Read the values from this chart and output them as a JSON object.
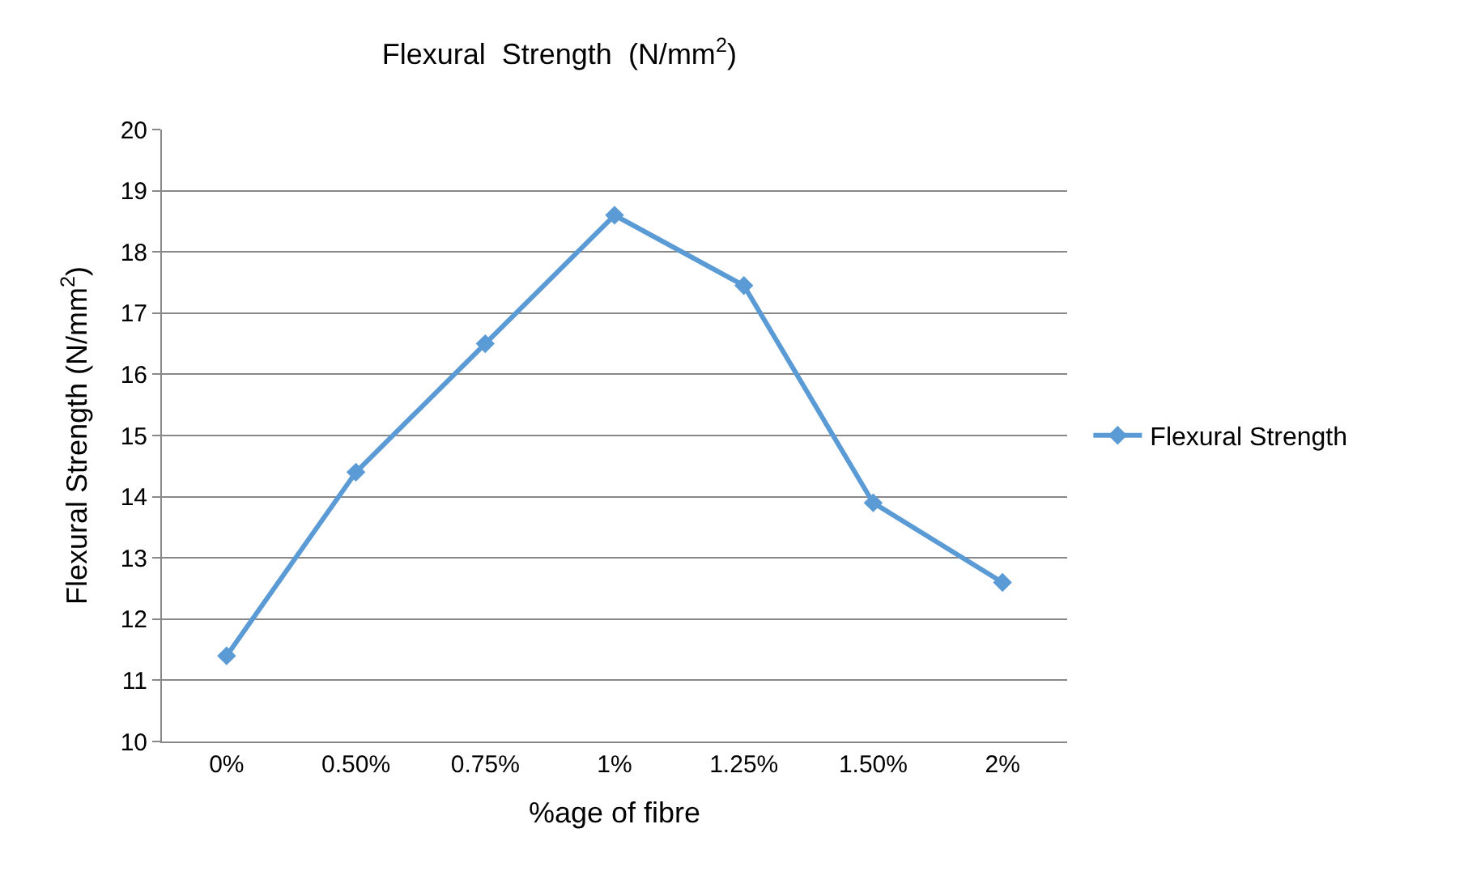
{
  "chart_data": {
    "type": "line",
    "title": "Flexural  Strength  (N/mm$^{2}$)",
    "xlabel": "%age of fibre",
    "ylabel": "Flexural Strength (N/mm$^{2}$)",
    "categories": [
      "0%",
      "0.50%",
      "0.75%",
      "1%",
      "1.25%",
      "1.50%",
      "2%"
    ],
    "series": [
      {
        "name": "Flexural Strength",
        "color": "#5b9bd5",
        "values": [
          11.4,
          14.4,
          16.5,
          18.6,
          17.45,
          13.9,
          12.6
        ]
      }
    ],
    "ylim": [
      10,
      20
    ],
    "yticks": [
      10,
      11,
      12,
      13,
      14,
      15,
      16,
      17,
      18,
      19,
      20
    ],
    "grid": "y",
    "legend": "right",
    "marker": "diamond",
    "line_style": "solid"
  }
}
